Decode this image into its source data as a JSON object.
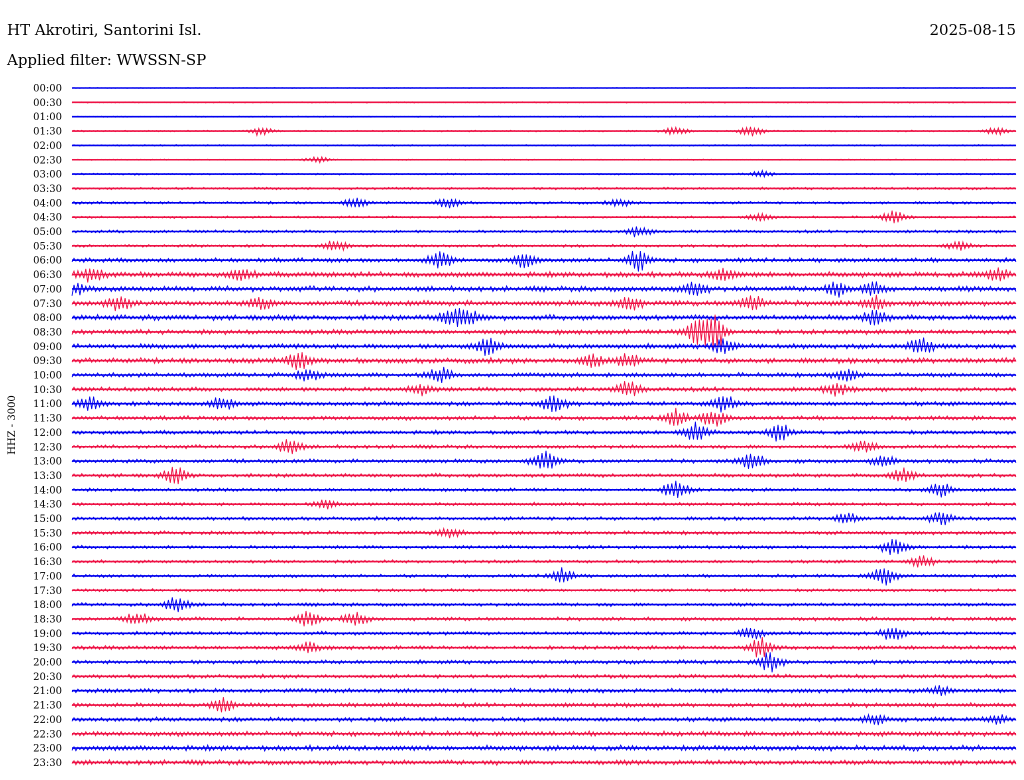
{
  "header": {
    "station": "HT Akrotiri, Santorini Isl.",
    "date": "2025-08-15",
    "filter": "Applied filter: WWSSN-SP"
  },
  "chart_data": {
    "type": "line",
    "title": "HT Akrotiri, Santorini Isl.",
    "subtitle": "Applied filter: WWSSN-SP",
    "ylabel": "HHZ  -  3000",
    "xlabel": "",
    "row_labels": [
      "00:00",
      "00:30",
      "01:00",
      "01:30",
      "02:00",
      "02:30",
      "03:00",
      "03:30",
      "04:00",
      "04:30",
      "05:00",
      "05:30",
      "06:00",
      "06:30",
      "07:00",
      "07:30",
      "08:00",
      "08:30",
      "09:00",
      "09:30",
      "10:00",
      "10:30",
      "11:00",
      "11:30",
      "12:00",
      "12:30",
      "13:00",
      "13:30",
      "14:00",
      "14:30",
      "15:00",
      "15:30",
      "16:00",
      "16:30",
      "17:00",
      "17:30",
      "18:00",
      "18:30",
      "19:00",
      "19:30",
      "20:00",
      "20:30",
      "21:00",
      "21:30",
      "22:00",
      "22:30",
      "23:00",
      "23:30"
    ],
    "colors": [
      "#0000ee",
      "#ee1144"
    ],
    "grid": false,
    "noise_level": [
      0.3,
      0.5,
      0.5,
      0.6,
      0.6,
      0.5,
      0.7,
      1.0,
      1.1,
      0.9,
      1.2,
      1.2,
      1.8,
      2.2,
      2.2,
      2.2,
      2.2,
      2.0,
      2.0,
      2.2,
      1.8,
      1.8,
      1.8,
      1.7,
      1.6,
      1.5,
      1.6,
      1.6,
      1.4,
      1.3,
      1.5,
      1.5,
      1.4,
      1.3,
      1.3,
      1.2,
      1.4,
      1.5,
      1.5,
      1.6,
      1.6,
      1.6,
      1.8,
      1.8,
      1.8,
      2.0,
      2.2,
      2.0
    ],
    "events": [
      {
        "row": 3,
        "t": 0.2,
        "amp": 4
      },
      {
        "row": 3,
        "t": 0.64,
        "amp": 4
      },
      {
        "row": 3,
        "t": 0.72,
        "amp": 5
      },
      {
        "row": 3,
        "t": 0.98,
        "amp": 4
      },
      {
        "row": 5,
        "t": 0.26,
        "amp": 3
      },
      {
        "row": 6,
        "t": 0.73,
        "amp": 3
      },
      {
        "row": 8,
        "t": 0.3,
        "amp": 4
      },
      {
        "row": 8,
        "t": 0.4,
        "amp": 5
      },
      {
        "row": 8,
        "t": 0.58,
        "amp": 3
      },
      {
        "row": 9,
        "t": 0.73,
        "amp": 4
      },
      {
        "row": 9,
        "t": 0.87,
        "amp": 6
      },
      {
        "row": 10,
        "t": 0.6,
        "amp": 5
      },
      {
        "row": 11,
        "t": 0.28,
        "amp": 5
      },
      {
        "row": 11,
        "t": 0.94,
        "amp": 4
      },
      {
        "row": 12,
        "t": 0.39,
        "amp": 8
      },
      {
        "row": 12,
        "t": 0.48,
        "amp": 6
      },
      {
        "row": 12,
        "t": 0.6,
        "amp": 10
      },
      {
        "row": 13,
        "t": 0.02,
        "amp": 6
      },
      {
        "row": 13,
        "t": 0.18,
        "amp": 5
      },
      {
        "row": 13,
        "t": 0.69,
        "amp": 6
      },
      {
        "row": 13,
        "t": 0.98,
        "amp": 6
      },
      {
        "row": 14,
        "t": 0.0,
        "amp": 6
      },
      {
        "row": 14,
        "t": 0.66,
        "amp": 7
      },
      {
        "row": 14,
        "t": 0.81,
        "amp": 6
      },
      {
        "row": 14,
        "t": 0.85,
        "amp": 6
      },
      {
        "row": 15,
        "t": 0.05,
        "amp": 6
      },
      {
        "row": 15,
        "t": 0.2,
        "amp": 5
      },
      {
        "row": 15,
        "t": 0.59,
        "amp": 7
      },
      {
        "row": 15,
        "t": 0.72,
        "amp": 8
      },
      {
        "row": 15,
        "t": 0.85,
        "amp": 6
      },
      {
        "row": 16,
        "t": 0.4,
        "amp": 8
      },
      {
        "row": 16,
        "t": 0.42,
        "amp": 7
      },
      {
        "row": 16,
        "t": 0.85,
        "amp": 7
      },
      {
        "row": 17,
        "t": 0.66,
        "amp": 10
      },
      {
        "row": 17,
        "t": 0.68,
        "amp": 18
      },
      {
        "row": 18,
        "t": 0.44,
        "amp": 8
      },
      {
        "row": 18,
        "t": 0.69,
        "amp": 7
      },
      {
        "row": 18,
        "t": 0.9,
        "amp": 7
      },
      {
        "row": 19,
        "t": 0.24,
        "amp": 8
      },
      {
        "row": 19,
        "t": 0.55,
        "amp": 6
      },
      {
        "row": 19,
        "t": 0.59,
        "amp": 6
      },
      {
        "row": 20,
        "t": 0.25,
        "amp": 6
      },
      {
        "row": 20,
        "t": 0.39,
        "amp": 7
      },
      {
        "row": 20,
        "t": 0.82,
        "amp": 6
      },
      {
        "row": 21,
        "t": 0.37,
        "amp": 5
      },
      {
        "row": 21,
        "t": 0.59,
        "amp": 7
      },
      {
        "row": 21,
        "t": 0.81,
        "amp": 6
      },
      {
        "row": 22,
        "t": 0.02,
        "amp": 6
      },
      {
        "row": 22,
        "t": 0.16,
        "amp": 6
      },
      {
        "row": 22,
        "t": 0.51,
        "amp": 9
      },
      {
        "row": 22,
        "t": 0.69,
        "amp": 8
      },
      {
        "row": 23,
        "t": 0.64,
        "amp": 8
      },
      {
        "row": 23,
        "t": 0.68,
        "amp": 8
      },
      {
        "row": 24,
        "t": 0.66,
        "amp": 10
      },
      {
        "row": 24,
        "t": 0.75,
        "amp": 8
      },
      {
        "row": 25,
        "t": 0.23,
        "amp": 8
      },
      {
        "row": 25,
        "t": 0.84,
        "amp": 5
      },
      {
        "row": 26,
        "t": 0.5,
        "amp": 10
      },
      {
        "row": 26,
        "t": 0.72,
        "amp": 8
      },
      {
        "row": 26,
        "t": 0.86,
        "amp": 6
      },
      {
        "row": 27,
        "t": 0.11,
        "amp": 8
      },
      {
        "row": 27,
        "t": 0.88,
        "amp": 6
      },
      {
        "row": 28,
        "t": 0.64,
        "amp": 10
      },
      {
        "row": 28,
        "t": 0.92,
        "amp": 7
      },
      {
        "row": 29,
        "t": 0.27,
        "amp": 4
      },
      {
        "row": 30,
        "t": 0.92,
        "amp": 6
      },
      {
        "row": 30,
        "t": 0.82,
        "amp": 5
      },
      {
        "row": 31,
        "t": 0.4,
        "amp": 4
      },
      {
        "row": 32,
        "t": 0.87,
        "amp": 8
      },
      {
        "row": 33,
        "t": 0.9,
        "amp": 6
      },
      {
        "row": 34,
        "t": 0.52,
        "amp": 7
      },
      {
        "row": 34,
        "t": 0.86,
        "amp": 10
      },
      {
        "row": 36,
        "t": 0.11,
        "amp": 8
      },
      {
        "row": 37,
        "t": 0.07,
        "amp": 6
      },
      {
        "row": 37,
        "t": 0.25,
        "amp": 7
      },
      {
        "row": 37,
        "t": 0.3,
        "amp": 6
      },
      {
        "row": 38,
        "t": 0.72,
        "amp": 6
      },
      {
        "row": 38,
        "t": 0.87,
        "amp": 7
      },
      {
        "row": 39,
        "t": 0.25,
        "amp": 5
      },
      {
        "row": 39,
        "t": 0.73,
        "amp": 10
      },
      {
        "row": 40,
        "t": 0.74,
        "amp": 9
      },
      {
        "row": 42,
        "t": 0.92,
        "amp": 4
      },
      {
        "row": 43,
        "t": 0.16,
        "amp": 6
      },
      {
        "row": 44,
        "t": 0.85,
        "amp": 4
      },
      {
        "row": 44,
        "t": 0.98,
        "amp": 4
      }
    ]
  }
}
